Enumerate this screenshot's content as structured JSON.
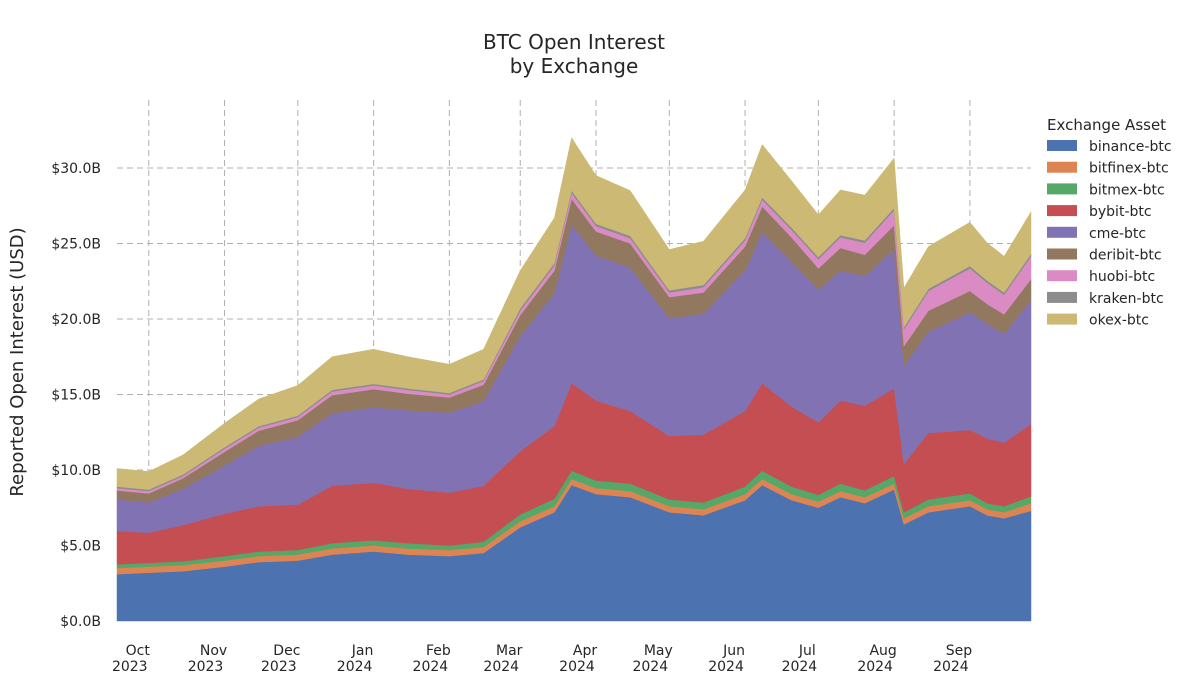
{
  "chart_data": {
    "type": "area",
    "stacked": true,
    "title": [
      "BTC Open Interest",
      "by Exchange"
    ],
    "ylabel": "Reported Open Interest (USD)",
    "xlabel": "",
    "ylim": [
      0,
      34.5
    ],
    "y_unit": "billion USD",
    "yticks": [
      0,
      5,
      10,
      15,
      20,
      25,
      30
    ],
    "ytick_labels": [
      "$0.0B",
      "$5.0B",
      "$10.0B",
      "$15.0B",
      "$20.0B",
      "$25.0B",
      "$30.0B"
    ],
    "x_range": [
      "2023-09-18",
      "2024-09-26"
    ],
    "xticks": [
      {
        "date": "2023-10-01",
        "month": "Oct",
        "year": "2023"
      },
      {
        "date": "2023-11-01",
        "month": "Nov",
        "year": "2023"
      },
      {
        "date": "2023-12-01",
        "month": "Dec",
        "year": "2023"
      },
      {
        "date": "2024-01-01",
        "month": "Jan",
        "year": "2024"
      },
      {
        "date": "2024-02-01",
        "month": "Feb",
        "year": "2024"
      },
      {
        "date": "2024-03-01",
        "month": "Mar",
        "year": "2024"
      },
      {
        "date": "2024-04-01",
        "month": "Apr",
        "year": "2024"
      },
      {
        "date": "2024-05-01",
        "month": "May",
        "year": "2024"
      },
      {
        "date": "2024-06-01",
        "month": "Jun",
        "year": "2024"
      },
      {
        "date": "2024-07-01",
        "month": "Jul",
        "year": "2024"
      },
      {
        "date": "2024-08-01",
        "month": "Aug",
        "year": "2024"
      },
      {
        "date": "2024-09-01",
        "month": "Sep",
        "year": "2024"
      }
    ],
    "grid": true,
    "legend": {
      "title": "Exchange Asset",
      "placement": "right"
    },
    "x": [
      "2023-09-18",
      "2023-10-01",
      "2023-10-15",
      "2023-11-01",
      "2023-11-15",
      "2023-12-01",
      "2023-12-15",
      "2024-01-01",
      "2024-01-15",
      "2024-02-01",
      "2024-02-15",
      "2024-03-01",
      "2024-03-15",
      "2024-03-22",
      "2024-04-01",
      "2024-04-15",
      "2024-05-01",
      "2024-05-15",
      "2024-06-01",
      "2024-06-08",
      "2024-06-20",
      "2024-07-01",
      "2024-07-10",
      "2024-07-20",
      "2024-08-01",
      "2024-08-05",
      "2024-08-15",
      "2024-09-01",
      "2024-09-08",
      "2024-09-15",
      "2024-09-26"
    ],
    "series": [
      {
        "name": "binance-btc",
        "color": "#4c72b0",
        "values": [
          3.1,
          3.2,
          3.3,
          3.6,
          3.9,
          4.0,
          4.4,
          4.6,
          4.4,
          4.3,
          4.5,
          6.2,
          7.2,
          9.0,
          8.4,
          8.2,
          7.2,
          7.0,
          8.0,
          9.0,
          8.0,
          7.5,
          8.2,
          7.8,
          8.7,
          6.4,
          7.2,
          7.6,
          7.0,
          6.8,
          7.3
        ]
      },
      {
        "name": "bitfinex-btc",
        "color": "#dd8452",
        "values": [
          0.4,
          0.4,
          0.4,
          0.4,
          0.4,
          0.4,
          0.4,
          0.4,
          0.4,
          0.4,
          0.4,
          0.4,
          0.4,
          0.4,
          0.4,
          0.4,
          0.4,
          0.4,
          0.4,
          0.4,
          0.4,
          0.4,
          0.4,
          0.4,
          0.4,
          0.4,
          0.4,
          0.4,
          0.4,
          0.4,
          0.5
        ]
      },
      {
        "name": "bitmex-btc",
        "color": "#55a868",
        "values": [
          0.25,
          0.25,
          0.25,
          0.3,
          0.3,
          0.3,
          0.35,
          0.35,
          0.35,
          0.3,
          0.35,
          0.45,
          0.5,
          0.55,
          0.5,
          0.5,
          0.45,
          0.45,
          0.5,
          0.55,
          0.5,
          0.45,
          0.5,
          0.45,
          0.5,
          0.4,
          0.45,
          0.45,
          0.4,
          0.4,
          0.45
        ]
      },
      {
        "name": "bybit-btc",
        "color": "#c44e52",
        "values": [
          2.2,
          2.0,
          2.4,
          2.8,
          3.0,
          3.0,
          3.8,
          3.8,
          3.6,
          3.5,
          3.7,
          4.2,
          4.8,
          5.8,
          5.3,
          4.8,
          4.2,
          4.5,
          5.0,
          5.8,
          5.3,
          4.8,
          5.5,
          5.6,
          5.8,
          3.2,
          4.4,
          4.2,
          4.3,
          4.2,
          4.8
        ]
      },
      {
        "name": "cme-btc",
        "color": "#8172b3",
        "values": [
          2.1,
          2.0,
          2.4,
          3.2,
          4.0,
          4.5,
          4.8,
          5.0,
          5.2,
          5.3,
          5.6,
          7.6,
          8.8,
          10.5,
          9.6,
          9.5,
          7.8,
          8.0,
          9.3,
          10.0,
          9.6,
          8.8,
          8.6,
          8.6,
          9.2,
          6.5,
          6.7,
          7.8,
          7.6,
          7.2,
          8.2
        ]
      },
      {
        "name": "deribit-btc",
        "color": "#937860",
        "values": [
          0.6,
          0.6,
          0.7,
          0.9,
          1.0,
          1.1,
          1.2,
          1.2,
          1.1,
          1.0,
          1.1,
          1.4,
          1.5,
          1.7,
          1.6,
          1.6,
          1.4,
          1.4,
          1.6,
          1.7,
          1.6,
          1.4,
          1.5,
          1.4,
          1.6,
          1.3,
          1.4,
          1.4,
          1.3,
          1.3,
          1.4
        ]
      },
      {
        "name": "huobi-btc",
        "color": "#da8bc3",
        "values": [
          0.15,
          0.15,
          0.15,
          0.2,
          0.2,
          0.2,
          0.25,
          0.25,
          0.25,
          0.2,
          0.25,
          0.3,
          0.35,
          0.4,
          0.35,
          0.35,
          0.3,
          0.35,
          0.4,
          0.45,
          0.5,
          0.6,
          0.7,
          0.8,
          1.0,
          1.1,
          1.3,
          1.5,
          1.4,
          1.3,
          1.5
        ]
      },
      {
        "name": "kraken-btc",
        "color": "#8c8c8c",
        "values": [
          0.1,
          0.1,
          0.1,
          0.1,
          0.1,
          0.1,
          0.1,
          0.1,
          0.1,
          0.1,
          0.1,
          0.15,
          0.15,
          0.15,
          0.15,
          0.15,
          0.15,
          0.15,
          0.15,
          0.15,
          0.15,
          0.15,
          0.15,
          0.15,
          0.15,
          0.15,
          0.15,
          0.15,
          0.15,
          0.15,
          0.15
        ]
      },
      {
        "name": "okex-btc",
        "color": "#ccb974",
        "values": [
          1.2,
          1.2,
          1.3,
          1.6,
          1.8,
          2.0,
          2.2,
          2.3,
          2.1,
          1.9,
          2.0,
          2.5,
          3.0,
          3.5,
          3.2,
          3.0,
          2.7,
          2.9,
          3.2,
          3.5,
          3.1,
          2.8,
          3.0,
          3.0,
          3.3,
          2.6,
          2.8,
          2.9,
          2.5,
          2.4,
          2.8
        ]
      }
    ]
  }
}
